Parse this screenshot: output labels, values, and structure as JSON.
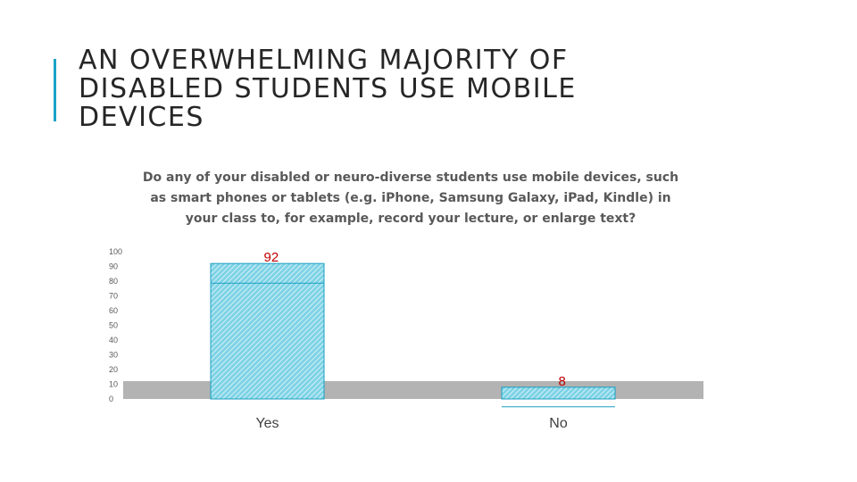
{
  "slide": {
    "title": "AN OVERWHELMING MAJORITY OF DISABLED STUDENTS USE MOBILE DEVICES",
    "accent_color": "#1aa3c7"
  },
  "chart_data": {
    "type": "bar",
    "title": "Do any of your disabled or neuro-diverse students use mobile devices, such as smart phones or tablets (e.g. iPhone, Samsung Galaxy, iPad, Kindle) in your class to, for example, record your lecture, or enlarge text?",
    "categories": [
      "Yes",
      "No"
    ],
    "values": [
      92,
      8
    ],
    "data_labels": [
      "92",
      "8"
    ],
    "yticks": [
      "0",
      "10",
      "20",
      "30",
      "40",
      "50",
      "60",
      "70",
      "80",
      "90",
      "100"
    ],
    "ylim": [
      0,
      100
    ],
    "xlabel": "",
    "ylabel": "",
    "grid": false,
    "legend": "none",
    "bar_fill": "#7fd3e6",
    "bar_stroke": "#1a9fc0",
    "floor_color": "#b3b3b3",
    "label_color": "#c00000",
    "axis_text_color": "#595959"
  }
}
